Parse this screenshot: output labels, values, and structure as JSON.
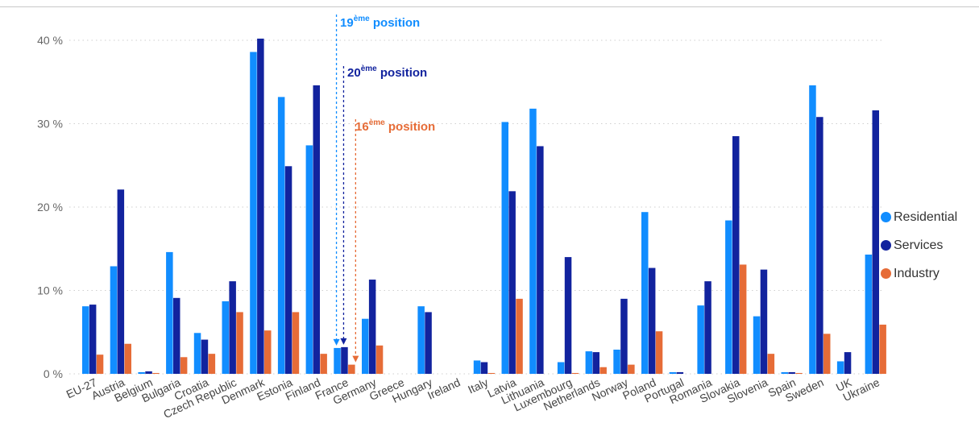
{
  "chart_data": {
    "type": "bar",
    "categories": [
      "EU-27",
      "Austria",
      "Belgium",
      "Bulgaria",
      "Croatia",
      "Czech Republic",
      "Denmark",
      "Estonia",
      "Finland",
      "France",
      "Germany",
      "Greece",
      "Hungary",
      "Ireland",
      "Italy",
      "Latvia",
      "Lithuania",
      "Luxembourg",
      "Netherlands",
      "Norway",
      "Poland",
      "Portugal",
      "Romania",
      "Slovakia",
      "Slovenia",
      "Spain",
      "Sweden",
      "UK",
      "Ukraine"
    ],
    "series": [
      {
        "name": "Residential",
        "color": "#118DFF",
        "values": [
          8.1,
          12.9,
          0.2,
          14.6,
          4.9,
          8.7,
          38.6,
          33.2,
          27.4,
          3.1,
          6.6,
          0,
          8.1,
          0,
          1.6,
          30.2,
          31.8,
          1.4,
          2.7,
          2.9,
          19.4,
          0.2,
          8.2,
          18.4,
          6.9,
          0.2,
          34.6,
          1.5,
          14.3
        ]
      },
      {
        "name": "Services",
        "color": "#12239E",
        "values": [
          8.3,
          22.1,
          0.3,
          9.1,
          4.1,
          11.1,
          40.2,
          24.9,
          34.6,
          3.2,
          11.3,
          0,
          7.4,
          0,
          1.4,
          21.9,
          27.3,
          14.0,
          2.6,
          9.0,
          12.7,
          0.2,
          11.1,
          28.5,
          12.5,
          0.2,
          30.8,
          2.6,
          31.6
        ]
      },
      {
        "name": "Industry",
        "color": "#E66C37",
        "values": [
          2.3,
          3.6,
          0.1,
          2.0,
          2.4,
          7.4,
          5.2,
          7.4,
          2.4,
          1.1,
          3.4,
          0,
          0,
          0,
          0.1,
          9.0,
          0,
          0.1,
          0.8,
          1.1,
          5.1,
          0,
          0,
          13.1,
          2.4,
          0.1,
          4.8,
          0,
          5.9
        ]
      }
    ],
    "yticks": [
      "0 %",
      "10 %",
      "20 %",
      "30 %",
      "40 %"
    ],
    "ylim": [
      0,
      42
    ],
    "grid": true,
    "legend_position": "right",
    "annotations": [
      {
        "category": "France",
        "series": "Residential",
        "rank": "19",
        "sup": "ème",
        "text": " position",
        "color": "#118DFF"
      },
      {
        "category": "France",
        "series": "Services",
        "rank": "20",
        "sup": "ème",
        "text": " position",
        "color": "#12239E"
      },
      {
        "category": "France",
        "series": "Industry",
        "rank": "16",
        "sup": "ème",
        "text": " position",
        "color": "#E66C37"
      }
    ]
  }
}
